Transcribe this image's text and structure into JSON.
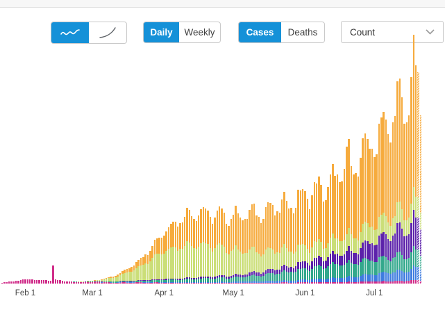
{
  "controls": {
    "chart_type": {
      "options": [
        {
          "name": "trend-daily-bars",
          "icon": "squiggle-line-icon",
          "active": true
        },
        {
          "name": "trend-cumulative-curve",
          "icon": "rising-curve-icon",
          "active": false
        }
      ]
    },
    "frequency": {
      "daily_label": "Daily",
      "weekly_label": "Weekly",
      "active": "Daily"
    },
    "metric": {
      "cases_label": "Cases",
      "deaths_label": "Deaths",
      "active": "Cases"
    },
    "count_dropdown": {
      "value": "Count",
      "icon": "chevron-down-icon"
    }
  },
  "ui_colors": {
    "active_toggle_blue": "#1591d8",
    "control_border": "#c9c9c9",
    "divider": "#dddddd",
    "axis_label_text": "#444444"
  },
  "chart_data": {
    "type": "bar",
    "stacked": true,
    "n_days": 182,
    "grid": false,
    "legend_visible": false,
    "y_axis_visible": false,
    "value_units": "estimated bar-segment heights in pixels (no numeric y-axis is shown in the screenshot)",
    "x_tick_labels": [
      "Feb 1",
      "Mar 1",
      "Apr 1",
      "May 1",
      "Jun 1",
      "Jul 1"
    ],
    "x_ticks": [
      {
        "day_index": 10,
        "label": "Feb 1"
      },
      {
        "day_index": 39,
        "label": "Mar 1"
      },
      {
        "day_index": 70,
        "label": "Apr 1"
      },
      {
        "day_index": 100,
        "label": "May 1"
      },
      {
        "day_index": 131,
        "label": "Jun 1"
      },
      {
        "day_index": 161,
        "label": "Jul 1"
      }
    ],
    "series": [
      {
        "name": "series-magenta-bottom",
        "color": "#d02e8a"
      },
      {
        "name": "series-blue",
        "color": "#3e7cdf"
      },
      {
        "name": "series-teal",
        "color": "#33a88c"
      },
      {
        "name": "series-purple",
        "color": "#5c22aa"
      },
      {
        "name": "series-lightgreen",
        "color": "#cbde78"
      },
      {
        "name": "series-orange-top",
        "color": "#f6ab3d"
      }
    ],
    "anchors": [
      {
        "d": 0,
        "v": [
          1.2,
          0,
          0,
          0,
          0,
          0
        ]
      },
      {
        "d": 3,
        "v": [
          2.5,
          0,
          0,
          0,
          0,
          0
        ]
      },
      {
        "d": 7,
        "v": [
          4.5,
          0,
          0,
          0,
          0,
          0
        ]
      },
      {
        "d": 10,
        "v": [
          6,
          0,
          0,
          0,
          0,
          0
        ]
      },
      {
        "d": 14,
        "v": [
          5.5,
          0,
          0,
          0,
          0,
          0
        ]
      },
      {
        "d": 18,
        "v": [
          5,
          0,
          0,
          0,
          0,
          0
        ]
      },
      {
        "d": 21,
        "v": [
          4,
          0,
          0,
          0,
          0,
          0
        ]
      },
      {
        "d": 22,
        "v": [
          26,
          0,
          0,
          0,
          0,
          0
        ]
      },
      {
        "d": 23,
        "v": [
          5.5,
          0,
          0,
          0,
          0,
          0
        ]
      },
      {
        "d": 27,
        "v": [
          3.5,
          0,
          0,
          0,
          0,
          0
        ]
      },
      {
        "d": 31,
        "v": [
          2.2,
          0,
          0.3,
          0,
          0.2,
          0
        ]
      },
      {
        "d": 38,
        "v": [
          1.8,
          0,
          0.6,
          0.2,
          0.8,
          0.2
        ]
      },
      {
        "d": 45,
        "v": [
          1.5,
          0.1,
          1,
          0.3,
          3.5,
          1
        ]
      },
      {
        "d": 52,
        "v": [
          1.5,
          0.2,
          1.5,
          0.5,
          9,
          3.5
        ]
      },
      {
        "d": 59,
        "v": [
          1.5,
          0.3,
          2,
          0.7,
          19,
          9
        ]
      },
      {
        "d": 66,
        "v": [
          1.5,
          0.4,
          3,
          1,
          33,
          19
        ]
      },
      {
        "d": 70,
        "v": [
          1.5,
          0.5,
          3.5,
          1.2,
          41,
          28
        ]
      },
      {
        "d": 77,
        "v": [
          1.3,
          0.6,
          4,
          1.6,
          46,
          40
        ]
      },
      {
        "d": 84,
        "v": [
          1.2,
          0.8,
          5,
          2,
          48,
          47
        ]
      },
      {
        "d": 91,
        "v": [
          1.2,
          1,
          5.5,
          2.5,
          43,
          46
        ]
      },
      {
        "d": 98,
        "v": [
          1.2,
          1.2,
          6,
          3,
          38,
          48
        ]
      },
      {
        "d": 105,
        "v": [
          1.3,
          1.6,
          7,
          4,
          33,
          52
        ]
      },
      {
        "d": 112,
        "v": [
          1.3,
          2,
          9,
          5,
          29,
          57
        ]
      },
      {
        "d": 119,
        "v": [
          1.4,
          2.5,
          11,
          6.5,
          26,
          62
        ]
      },
      {
        "d": 126,
        "v": [
          1.6,
          3,
          13.5,
          8,
          23.5,
          68
        ]
      },
      {
        "d": 133,
        "v": [
          1.8,
          4,
          16,
          10.5,
          22,
          77
        ]
      },
      {
        "d": 140,
        "v": [
          2,
          5,
          18,
          12.5,
          21,
          80
        ]
      },
      {
        "d": 147,
        "v": [
          2.2,
          6,
          20,
          15,
          22,
          92
        ]
      },
      {
        "d": 149,
        "v": [
          2.2,
          6.5,
          20,
          16,
          22.5,
          120
        ]
      },
      {
        "d": 151,
        "v": [
          2.3,
          7,
          20,
          16.5,
          22.5,
          95
        ]
      },
      {
        "d": 154,
        "v": [
          2.5,
          8,
          20,
          18,
          23,
          105
        ]
      },
      {
        "d": 161,
        "v": [
          3,
          11,
          21,
          28,
          25,
          120
        ]
      },
      {
        "d": 168,
        "v": [
          3.5,
          12.5,
          21.5,
          33,
          25.5,
          140
        ]
      },
      {
        "d": 175,
        "v": [
          4,
          14,
          22,
          38,
          26,
          160
        ]
      },
      {
        "d": 178,
        "v": [
          4.5,
          17,
          23,
          42,
          27,
          180
        ]
      },
      {
        "d": 181,
        "v": [
          4.5,
          18,
          23,
          43,
          28,
          160
        ]
      }
    ],
    "weekly_variation": 0.11,
    "hatched_last_n": 2
  }
}
